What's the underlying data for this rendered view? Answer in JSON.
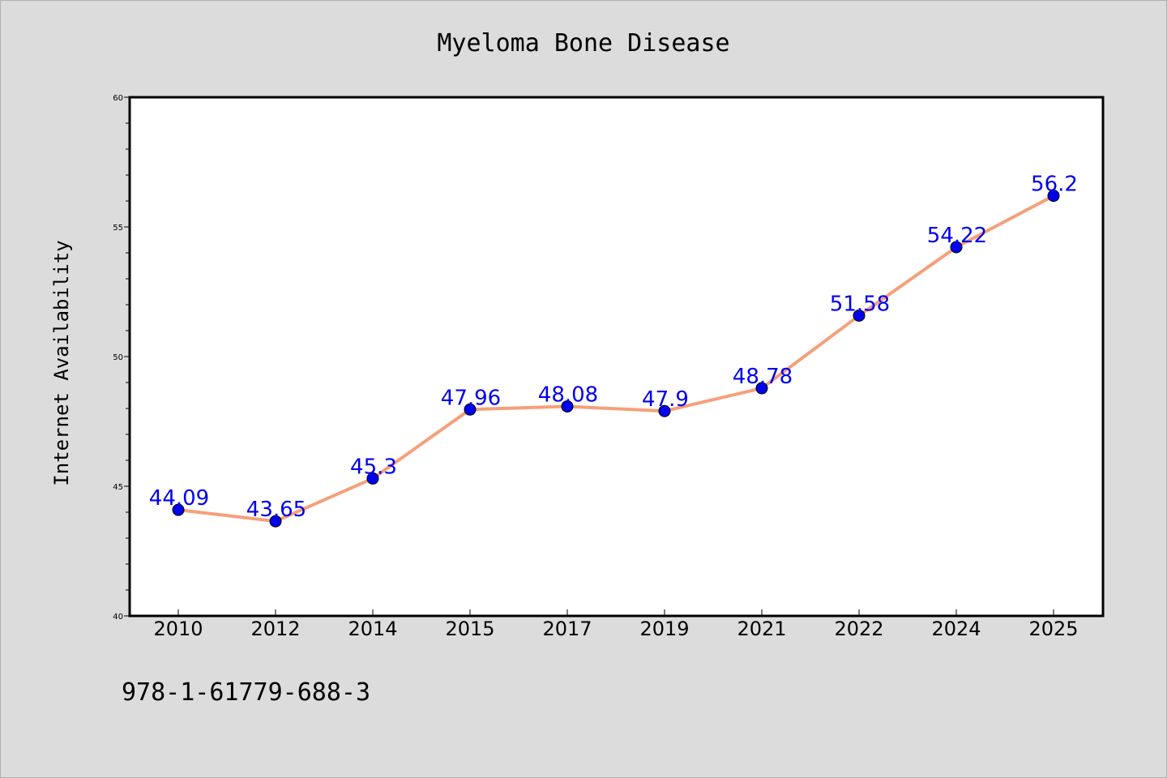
{
  "chart_data": {
    "type": "line",
    "title": "Myeloma Bone Disease",
    "xlabel": "",
    "ylabel": "Internet Availability",
    "categories": [
      "2010",
      "2012",
      "2014",
      "2015",
      "2017",
      "2019",
      "2021",
      "2022",
      "2024",
      "2025"
    ],
    "series": [
      {
        "values": [
          44.09,
          43.65,
          45.3,
          47.96,
          48.08,
          47.9,
          48.78,
          51.58,
          54.22,
          56.2
        ],
        "labels": [
          "44.09",
          "43.65",
          "45.3",
          "47.96",
          "48.08",
          "47.9",
          "48.78",
          "51.58",
          "54.22",
          "56.2"
        ]
      }
    ],
    "ylim": [
      40,
      60
    ],
    "yticks": [
      "40",
      "45",
      "50",
      "55",
      "60"
    ],
    "grid": false,
    "line_color": "#f5a07a",
    "marker_color": "#0000ee",
    "label_color": "#0000ee"
  },
  "footer": {
    "isbn": "978-1-61779-688-3"
  }
}
